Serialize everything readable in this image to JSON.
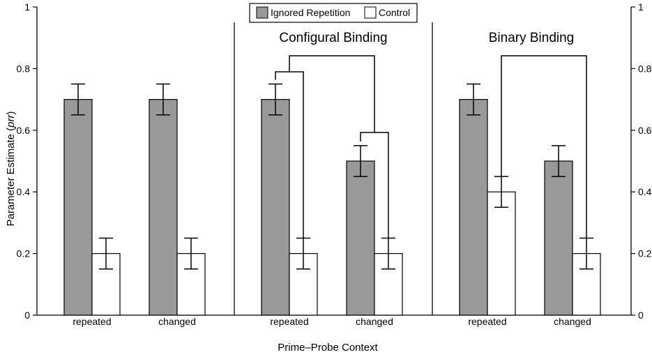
{
  "chart_data": {
    "type": "bar",
    "ylabel_prefix": "Parameter Estimate (",
    "ylabel_italic": "prr",
    "ylabel_suffix": ")",
    "xlabel": "Prime–Probe Context",
    "ylim": [
      0,
      1
    ],
    "yticks": [
      "0",
      "0.2",
      "0.4",
      "0.6",
      "0.8",
      "1"
    ],
    "legend": {
      "placement": "top-center",
      "entries": [
        {
          "name": "Ignored Repetition",
          "color": "#999999"
        },
        {
          "name": "Control",
          "color": "#ffffff"
        }
      ]
    },
    "series_colors": {
      "ignored": "#999999",
      "control": "#ffffff"
    },
    "panels": [
      {
        "title": "",
        "groups": [
          {
            "category": "repeated",
            "ignored": 0.7,
            "ignored_err": 0.05,
            "control": 0.2,
            "control_err": 0.05
          },
          {
            "category": "changed",
            "ignored": 0.7,
            "ignored_err": 0.05,
            "control": 0.2,
            "control_err": 0.05
          }
        ]
      },
      {
        "title": "Configural Binding",
        "groups": [
          {
            "category": "repeated",
            "ignored": 0.7,
            "ignored_err": 0.05,
            "control": 0.2,
            "control_err": 0.05
          },
          {
            "category": "changed",
            "ignored": 0.5,
            "ignored_err": 0.05,
            "control": 0.2,
            "control_err": 0.05
          }
        ]
      },
      {
        "title": "Binary Binding",
        "groups": [
          {
            "category": "repeated",
            "ignored": 0.7,
            "ignored_err": 0.05,
            "control": 0.4,
            "control_err": 0.05
          },
          {
            "category": "changed",
            "ignored": 0.5,
            "ignored_err": 0.05,
            "control": 0.2,
            "control_err": 0.05
          }
        ]
      }
    ]
  }
}
